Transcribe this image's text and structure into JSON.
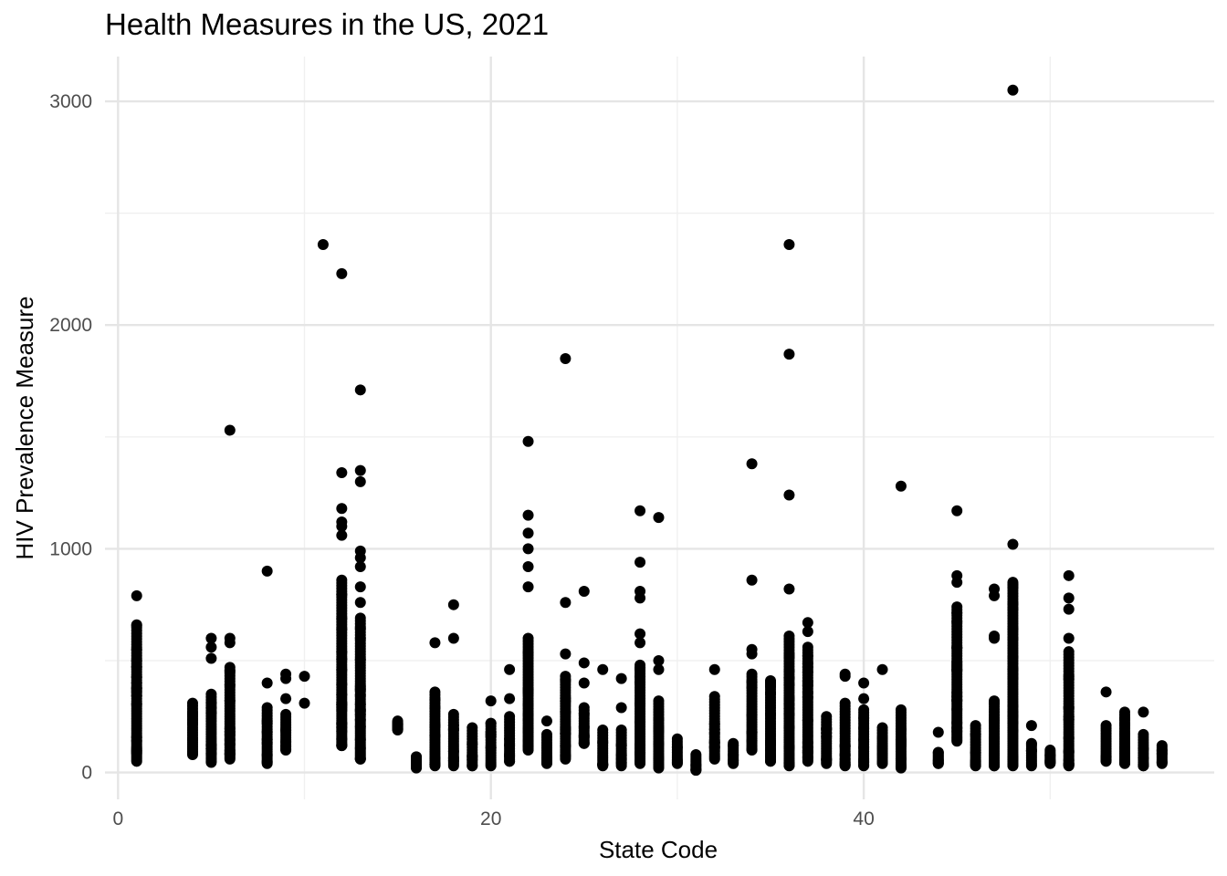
{
  "chart_data": {
    "type": "scatter",
    "title": "Health Measures in the US, 2021",
    "xlabel": "State Code",
    "ylabel": "HIV Prevalence Measure",
    "xlim": [
      -0.7,
      58.8
    ],
    "ylim": [
      -120,
      3200
    ],
    "x_ticks": [
      0,
      20,
      40
    ],
    "y_ticks": [
      0,
      1000,
      2000,
      3000
    ],
    "x_minor_ticks": [
      10,
      30,
      50
    ],
    "y_minor_ticks": [
      500,
      1500,
      2500
    ],
    "grid": true,
    "legend": "none",
    "point_color": "#000000",
    "columns": [
      {
        "x": 1,
        "range": [
          50,
          660
        ],
        "outliers": [
          790
        ]
      },
      {
        "x": 4,
        "range": [
          80,
          310
        ],
        "outliers": []
      },
      {
        "x": 5,
        "range": [
          45,
          350
        ],
        "outliers": [
          510,
          560,
          600
        ]
      },
      {
        "x": 6,
        "range": [
          60,
          470
        ],
        "outliers": [
          580,
          600,
          1530
        ]
      },
      {
        "x": 8,
        "range": [
          40,
          290
        ],
        "outliers": [
          400,
          900
        ]
      },
      {
        "x": 9,
        "range": [
          100,
          260
        ],
        "outliers": [
          330,
          420,
          440
        ]
      },
      {
        "x": 10,
        "range": [
          310,
          310
        ],
        "outliers": [
          430
        ]
      },
      {
        "x": 11,
        "range": [
          2360,
          2360
        ],
        "outliers": []
      },
      {
        "x": 12,
        "range": [
          120,
          860
        ],
        "outliers": [
          1060,
          1100,
          1120,
          1180,
          1340,
          2230
        ]
      },
      {
        "x": 13,
        "range": [
          60,
          690
        ],
        "outliers": [
          760,
          830,
          920,
          960,
          990,
          1300,
          1350,
          1710
        ]
      },
      {
        "x": 15,
        "range": [
          190,
          230
        ],
        "outliers": []
      },
      {
        "x": 16,
        "range": [
          20,
          70
        ],
        "outliers": []
      },
      {
        "x": 17,
        "range": [
          30,
          360
        ],
        "outliers": [
          580
        ]
      },
      {
        "x": 18,
        "range": [
          30,
          260
        ],
        "outliers": [
          600,
          750
        ]
      },
      {
        "x": 19,
        "range": [
          30,
          200
        ],
        "outliers": []
      },
      {
        "x": 20,
        "range": [
          30,
          220
        ],
        "outliers": [
          320
        ]
      },
      {
        "x": 21,
        "range": [
          50,
          250
        ],
        "outliers": [
          330,
          460
        ]
      },
      {
        "x": 22,
        "range": [
          100,
          600
        ],
        "outliers": [
          830,
          920,
          1000,
          1070,
          1150,
          1480
        ]
      },
      {
        "x": 23,
        "range": [
          40,
          170
        ],
        "outliers": [
          230
        ]
      },
      {
        "x": 24,
        "range": [
          60,
          430
        ],
        "outliers": [
          530,
          760,
          1850
        ]
      },
      {
        "x": 25,
        "range": [
          130,
          290
        ],
        "outliers": [
          400,
          490,
          810
        ]
      },
      {
        "x": 26,
        "range": [
          30,
          190
        ],
        "outliers": [
          460
        ]
      },
      {
        "x": 27,
        "range": [
          30,
          190
        ],
        "outliers": [
          290,
          420
        ]
      },
      {
        "x": 28,
        "range": [
          40,
          480
        ],
        "outliers": [
          580,
          620,
          780,
          810,
          940,
          1170
        ]
      },
      {
        "x": 29,
        "range": [
          20,
          320
        ],
        "outliers": [
          460,
          500,
          1140
        ]
      },
      {
        "x": 30,
        "range": [
          40,
          150
        ],
        "outliers": []
      },
      {
        "x": 31,
        "range": [
          10,
          80
        ],
        "outliers": []
      },
      {
        "x": 32,
        "range": [
          60,
          340
        ],
        "outliers": [
          460
        ]
      },
      {
        "x": 33,
        "range": [
          40,
          130
        ],
        "outliers": []
      },
      {
        "x": 34,
        "range": [
          100,
          440
        ],
        "outliers": [
          530,
          550,
          860,
          1380
        ]
      },
      {
        "x": 35,
        "range": [
          50,
          410
        ],
        "outliers": []
      },
      {
        "x": 36,
        "range": [
          30,
          610
        ],
        "outliers": [
          820,
          1240,
          1870,
          2360
        ]
      },
      {
        "x": 37,
        "range": [
          50,
          560
        ],
        "outliers": [
          630,
          670
        ]
      },
      {
        "x": 38,
        "range": [
          40,
          250
        ],
        "outliers": []
      },
      {
        "x": 39,
        "range": [
          30,
          310
        ],
        "outliers": [
          430,
          440
        ]
      },
      {
        "x": 40,
        "range": [
          30,
          280
        ],
        "outliers": [
          330,
          400
        ]
      },
      {
        "x": 41,
        "range": [
          40,
          200
        ],
        "outliers": [
          460
        ]
      },
      {
        "x": 42,
        "range": [
          20,
          280
        ],
        "outliers": [
          1280
        ]
      },
      {
        "x": 44,
        "range": [
          40,
          90
        ],
        "outliers": [
          180
        ]
      },
      {
        "x": 45,
        "range": [
          140,
          740
        ],
        "outliers": [
          850,
          880,
          1170
        ]
      },
      {
        "x": 46,
        "range": [
          30,
          210
        ],
        "outliers": []
      },
      {
        "x": 47,
        "range": [
          30,
          320
        ],
        "outliers": [
          600,
          610,
          790,
          820
        ]
      },
      {
        "x": 48,
        "range": [
          30,
          850
        ],
        "outliers": [
          1020,
          3050
        ]
      },
      {
        "x": 49,
        "range": [
          30,
          130
        ],
        "outliers": [
          210
        ]
      },
      {
        "x": 50,
        "range": [
          40,
          100
        ],
        "outliers": []
      },
      {
        "x": 51,
        "range": [
          30,
          540
        ],
        "outliers": [
          600,
          730,
          780,
          880
        ]
      },
      {
        "x": 53,
        "range": [
          50,
          210
        ],
        "outliers": [
          360
        ]
      },
      {
        "x": 54,
        "range": [
          40,
          270
        ],
        "outliers": []
      },
      {
        "x": 55,
        "range": [
          30,
          170
        ],
        "outliers": [
          270
        ]
      },
      {
        "x": 56,
        "range": [
          40,
          120
        ],
        "outliers": []
      }
    ]
  }
}
